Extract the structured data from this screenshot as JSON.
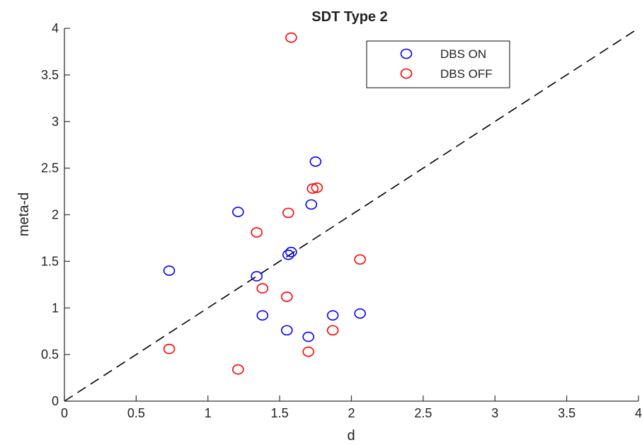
{
  "chart_data": {
    "type": "scatter",
    "title": "SDT Type 2",
    "xlabel": "d",
    "ylabel": "meta-d",
    "xlim": [
      0,
      4
    ],
    "ylim": [
      0,
      4
    ],
    "xticks": [
      "0",
      "0.5",
      "1",
      "1.5",
      "2",
      "2.5",
      "3",
      "3.5",
      "4"
    ],
    "yticks": [
      "0",
      "0.5",
      "1",
      "1.5",
      "2",
      "2.5",
      "3",
      "3.5",
      "4"
    ],
    "grid": false,
    "legend_position": "top-right",
    "reference_line": {
      "style": "dashed",
      "from": [
        0,
        0
      ],
      "to": [
        4,
        4
      ],
      "color": "#000000"
    },
    "series": [
      {
        "name": "DBS ON",
        "color": "#0000ff",
        "marker": "open-circle",
        "points": [
          [
            0.73,
            1.4
          ],
          [
            1.21,
            2.03
          ],
          [
            1.34,
            1.34
          ],
          [
            1.38,
            0.92
          ],
          [
            1.55,
            0.76
          ],
          [
            1.56,
            1.57
          ],
          [
            1.58,
            1.6
          ],
          [
            1.7,
            0.69
          ],
          [
            1.72,
            2.11
          ],
          [
            1.75,
            2.57
          ],
          [
            1.87,
            0.92
          ],
          [
            2.06,
            0.94
          ]
        ]
      },
      {
        "name": "DBS OFF",
        "color": "#ff0000",
        "marker": "open-circle",
        "points": [
          [
            0.73,
            0.56
          ],
          [
            1.21,
            0.34
          ],
          [
            1.34,
            1.81
          ],
          [
            1.38,
            1.21
          ],
          [
            1.55,
            1.12
          ],
          [
            1.56,
            2.02
          ],
          [
            1.58,
            3.9
          ],
          [
            1.7,
            0.53
          ],
          [
            1.73,
            2.28
          ],
          [
            1.76,
            2.29
          ],
          [
            1.87,
            0.76
          ],
          [
            2.06,
            1.52
          ]
        ]
      }
    ]
  }
}
